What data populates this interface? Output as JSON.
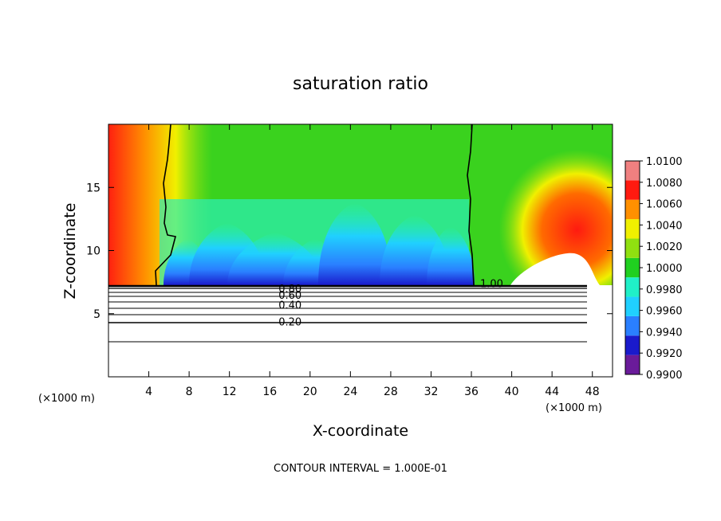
{
  "chart_data": {
    "type": "heatmap",
    "title": "saturation ratio",
    "xlabel": "X-coordinate",
    "ylabel": "Z-coordinate",
    "x_unit_left": "(×1000 m)",
    "x_unit_right": "(×1000 m)",
    "xlim": [
      0,
      50
    ],
    "ylim": [
      0,
      20
    ],
    "x_ticks": [
      4,
      8,
      12,
      16,
      20,
      24,
      28,
      32,
      36,
      40,
      44,
      48
    ],
    "y_ticks": [
      5,
      10,
      15
    ],
    "colorbar": {
      "levels": [
        0.99,
        0.992,
        0.994,
        0.996,
        0.998,
        1.0,
        1.002,
        1.004,
        1.006,
        1.008,
        1.01
      ],
      "labels": [
        "0.9900",
        "0.9920",
        "0.9940",
        "0.9960",
        "0.9980",
        "1.0000",
        "1.0020",
        "1.0040",
        "1.0060",
        "1.0080",
        "1.0100"
      ],
      "colors": [
        "#6a1b9a",
        "#1a1acc",
        "#2a7fff",
        "#20d0ff",
        "#20f0c8",
        "#20d020",
        "#90e010",
        "#f0f000",
        "#ff9000",
        "#ff1a10",
        "#f08080"
      ]
    },
    "contour_labels": [
      {
        "text": "1.00",
        "x": 37.5,
        "z": 7.4
      },
      {
        "text": "0.80",
        "x": 17.5,
        "z": 7.0
      },
      {
        "text": "0.60",
        "x": 17.5,
        "z": 6.5
      },
      {
        "text": "0.40",
        "x": 17.5,
        "z": 5.7
      },
      {
        "text": "0.20",
        "x": 17.5,
        "z": 4.4
      }
    ],
    "contour_interval_text": "CONTOUR INTERVAL = 1.000E-01"
  }
}
